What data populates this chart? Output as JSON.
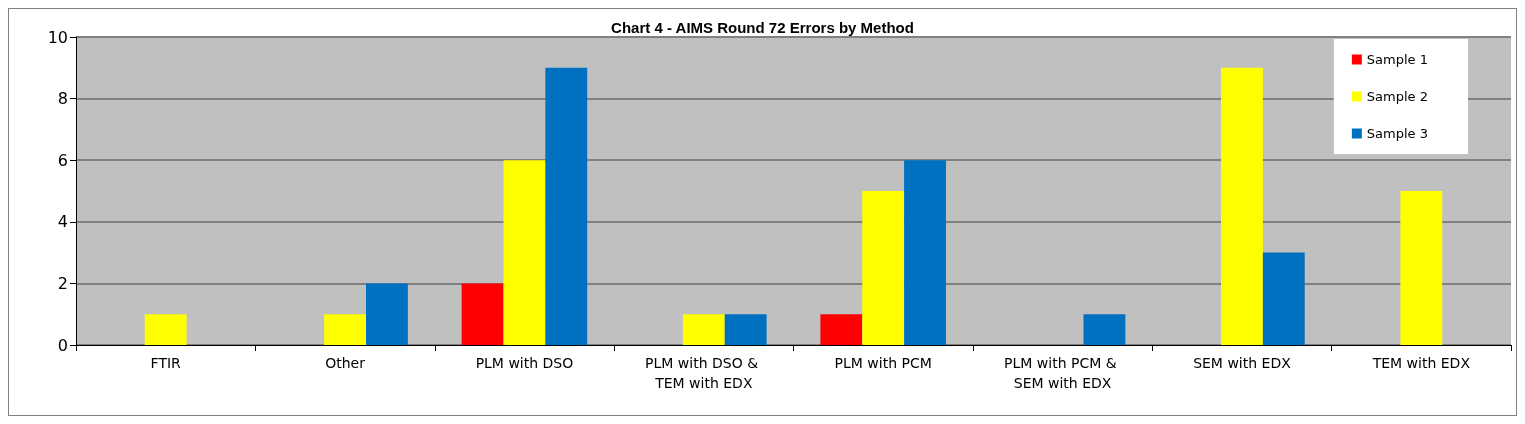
{
  "chart_data": {
    "type": "bar",
    "title": "Chart 4 - AIMS Round 72 Errors by Method",
    "categories": [
      "FTIR",
      "Other",
      "PLM with DSO",
      "PLM with DSO & TEM with EDX",
      "PLM with PCM",
      "PLM with PCM & SEM with EDX",
      "SEM with EDX",
      "TEM with EDX"
    ],
    "series": [
      {
        "name": "Sample 1",
        "color": "#ff0000",
        "values": [
          0,
          0,
          2,
          0,
          1,
          0,
          0,
          0
        ]
      },
      {
        "name": "Sample 2",
        "color": "#ffff00",
        "values": [
          1,
          1,
          6,
          1,
          5,
          0,
          9,
          5
        ]
      },
      {
        "name": "Sample 3",
        "color": "#0070c0",
        "values": [
          0,
          2,
          9,
          1,
          6,
          1,
          3,
          0
        ]
      }
    ],
    "ylim": [
      0,
      10
    ],
    "yticks": [
      0,
      2,
      4,
      6,
      8,
      10
    ],
    "grid": "y",
    "legend": "top right"
  }
}
